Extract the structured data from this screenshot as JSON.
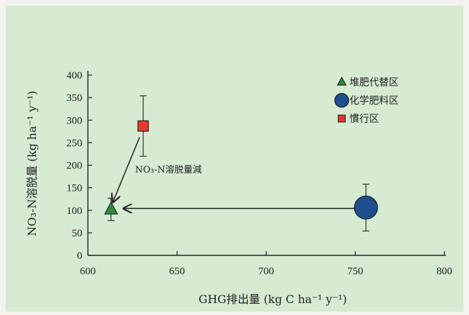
{
  "chart_data": {
    "type": "scatter",
    "xlabel": "GHG排出量 (kg C ha⁻¹ y⁻¹)",
    "ylabel": "NO₃-N溶脱量 (kg ha⁻¹ y⁻¹)",
    "xlim": [
      600,
      800
    ],
    "ylim": [
      0,
      400
    ],
    "x_ticks": [
      "600",
      "650",
      "700",
      "750",
      "800"
    ],
    "y_ticks": [
      "0",
      "50",
      "100",
      "150",
      "200",
      "250",
      "300",
      "350",
      "400"
    ],
    "series": [
      {
        "name": "堆肥代替区",
        "marker": "triangle",
        "color": "#2e8b3a",
        "x": 613,
        "y": 102,
        "y_err": 25
      },
      {
        "name": "化学肥料区",
        "marker": "circle",
        "color": "#1f4e8c",
        "x": 756,
        "y": 106,
        "y_err": 52
      },
      {
        "name": "慣行区",
        "marker": "square",
        "color": "#e23a2e",
        "x": 631,
        "y": 287,
        "y_err": 67
      }
    ],
    "annotations": [
      {
        "text": "NO₃-N溶脱量減",
        "from": [
          629,
          262
        ],
        "to": [
          614,
          118
        ]
      },
      {
        "text": "",
        "from": [
          750,
          104
        ],
        "to": [
          620,
          104
        ]
      }
    ],
    "legend_position": "top-right",
    "grid": false
  }
}
